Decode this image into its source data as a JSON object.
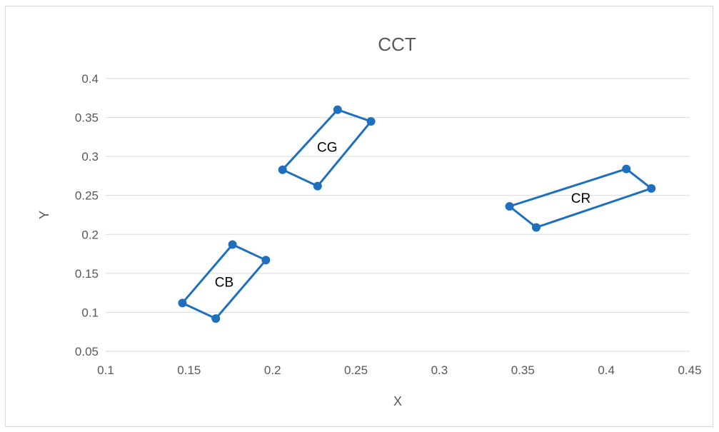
{
  "chart_data": {
    "type": "scatter",
    "title": "CCT",
    "xlabel": "X",
    "ylabel": "Y",
    "xlim": [
      0.1,
      0.45
    ],
    "ylim": [
      0.05,
      0.4
    ],
    "xticks": [
      "0.1",
      "0.15",
      "0.2",
      "0.25",
      "0.3",
      "0.35",
      "0.4",
      "0.45"
    ],
    "yticks": [
      "0.05",
      "0.1",
      "0.15",
      "0.2",
      "0.25",
      "0.3",
      "0.35",
      "0.4"
    ],
    "grid": "horizontal",
    "legend": "none",
    "series": [
      {
        "label": "CB",
        "points": [
          [
            0.146,
            0.112
          ],
          [
            0.166,
            0.092
          ],
          [
            0.196,
            0.167
          ],
          [
            0.176,
            0.187
          ],
          [
            0.146,
            0.112
          ]
        ]
      },
      {
        "label": "CG",
        "points": [
          [
            0.206,
            0.283
          ],
          [
            0.227,
            0.262
          ],
          [
            0.259,
            0.345
          ],
          [
            0.239,
            0.36
          ],
          [
            0.206,
            0.283
          ]
        ]
      },
      {
        "label": "CR",
        "points": [
          [
            0.342,
            0.236
          ],
          [
            0.358,
            0.209
          ],
          [
            0.427,
            0.259
          ],
          [
            0.412,
            0.284
          ],
          [
            0.342,
            0.236
          ]
        ]
      }
    ],
    "color": "#1f6fbf"
  }
}
